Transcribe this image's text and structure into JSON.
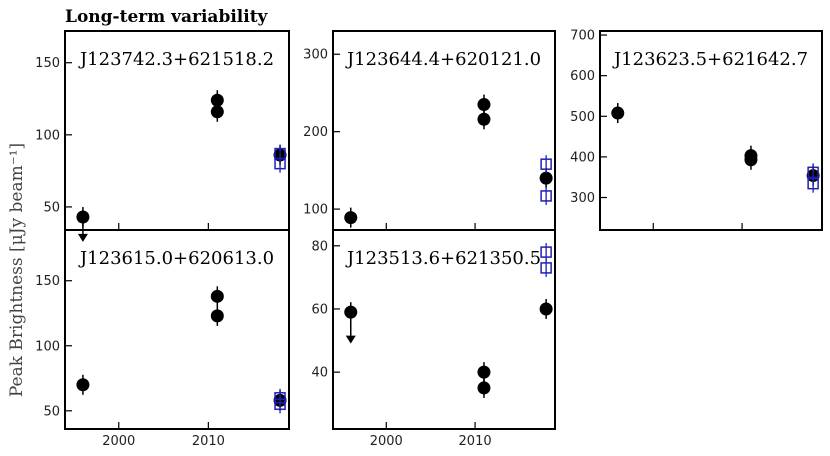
{
  "figure": {
    "title": "Long-term variability",
    "ylabel": "Peak Brightness [μJy beam⁻¹]"
  },
  "chart_data": [
    {
      "type": "scatter",
      "source": "J123742.3+621518.2",
      "xlim": [
        1994,
        2019
      ],
      "ylim": [
        34,
        172
      ],
      "yticks": [
        50,
        100,
        150
      ],
      "xticks": [],
      "series": [
        {
          "marker": "filled-circle",
          "points": [
            [
              1996,
              43
            ],
            [
              2011,
              124
            ],
            [
              2011,
              116
            ],
            [
              2018,
              86
            ]
          ]
        },
        {
          "marker": "open-square",
          "points": [
            [
              2018,
              87
            ],
            [
              2018,
              80
            ]
          ]
        },
        {
          "marker": "upper-limit-arrow",
          "points": [
            [
              1996,
              41
            ]
          ]
        }
      ]
    },
    {
      "type": "scatter",
      "source": "J123644.4+620121.0",
      "xlim": [
        1994,
        2019
      ],
      "ylim": [
        73,
        330
      ],
      "yticks": [
        100,
        200,
        300
      ],
      "xticks": [],
      "series": [
        {
          "marker": "filled-circle",
          "points": [
            [
              1996,
              89
            ],
            [
              2011,
              235
            ],
            [
              2011,
              216
            ],
            [
              2018,
              140
            ]
          ]
        },
        {
          "marker": "open-square",
          "points": [
            [
              2018,
              158
            ],
            [
              2018,
              117
            ]
          ]
        }
      ]
    },
    {
      "type": "scatter",
      "source": "J123623.5+621642.7",
      "xlim": [
        1994,
        2019
      ],
      "ylim": [
        220,
        710
      ],
      "yticks": [
        300,
        400,
        500,
        600,
        700
      ],
      "xticks": [],
      "series": [
        {
          "marker": "filled-circle",
          "points": [
            [
              1996,
              508
            ],
            [
              2011,
              403
            ],
            [
              2011,
              393
            ],
            [
              2018,
              354
            ]
          ]
        },
        {
          "marker": "open-square",
          "points": [
            [
              2018,
              362
            ],
            [
              2018,
              334
            ]
          ]
        }
      ]
    },
    {
      "type": "scatter",
      "source": "J123615.0+620613.0",
      "xlim": [
        1994,
        2019
      ],
      "ylim": [
        36,
        189
      ],
      "yticks": [
        50,
        100,
        150
      ],
      "xticks": [
        2000,
        2010
      ],
      "series": [
        {
          "marker": "filled-circle",
          "points": [
            [
              1996,
              70
            ],
            [
              2011,
              138
            ],
            [
              2011,
              123
            ],
            [
              2018,
              58
            ]
          ]
        },
        {
          "marker": "open-square",
          "points": [
            [
              2018,
              60
            ],
            [
              2018,
              55
            ]
          ]
        }
      ]
    },
    {
      "type": "scatter",
      "source": "J123513.6+621350.5",
      "xlim": [
        1994,
        2019
      ],
      "ylim": [
        22,
        85
      ],
      "yticks": [
        40,
        60,
        80
      ],
      "xticks": [
        2000,
        2010
      ],
      "series": [
        {
          "marker": "filled-circle",
          "points": [
            [
              1996,
              59
            ],
            [
              2011,
              40
            ],
            [
              2011,
              35
            ],
            [
              2018,
              60
            ]
          ]
        },
        {
          "marker": "open-square",
          "points": [
            [
              2018,
              78
            ],
            [
              2018,
              73
            ]
          ]
        },
        {
          "marker": "upper-limit-arrow",
          "points": [
            [
              1996,
              56
            ]
          ]
        }
      ]
    }
  ]
}
